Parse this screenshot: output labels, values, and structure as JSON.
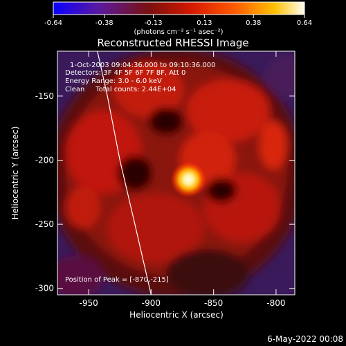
{
  "chart_data": {
    "type": "heatmap",
    "title": "Reconstructed RHESSI Image",
    "xlabel": "Heliocentric X (arcsec)",
    "ylabel": "Heliocentric Y (arcsec)",
    "xlim": [
      -975,
      -785
    ],
    "ylim": [
      -305,
      -115
    ],
    "x_ticks": [
      {
        "value": -950,
        "label": "-950"
      },
      {
        "value": -900,
        "label": "-900"
      },
      {
        "value": -850,
        "label": "-850"
      },
      {
        "value": -800,
        "label": "-800"
      }
    ],
    "y_ticks": [
      {
        "value": -150,
        "label": "-150"
      },
      {
        "value": -200,
        "label": "-200"
      },
      {
        "value": -250,
        "label": "-250"
      },
      {
        "value": -300,
        "label": "-300"
      }
    ],
    "colorbar": {
      "range": [
        -0.64,
        0.64
      ],
      "tick_values": [
        -0.64,
        -0.38,
        -0.13,
        0.13,
        0.38,
        0.64
      ],
      "tick_labels": [
        "-0.64",
        "-0.38",
        "-0.13",
        "0.13",
        "0.38",
        "0.64"
      ],
      "units": "(photons cm⁻² s⁻¹ asec⁻²)"
    },
    "peak": {
      "x": -870,
      "y": -215
    },
    "annotations": {
      "time": "1-Oct-2003 09:04:36.000 to 09:10:36.000",
      "detectors": "Detectors: 3F 4F 5F 6F 7F 8F, Att 0",
      "energy": "Energy Range: 3.0 - 6.0 keV",
      "method": "Clean     Total counts: 2.44E+04",
      "peak_label": "Position of Peak = [-870,-215]"
    },
    "limb": [
      {
        "x": -943,
        "y": -115
      },
      {
        "x": -935,
        "y": -150
      },
      {
        "x": -925,
        "y": -200
      },
      {
        "x": -913,
        "y": -250
      },
      {
        "x": -900,
        "y": -305
      }
    ],
    "grid": false
  },
  "footer": {
    "date": "6-May-2022 00:08"
  }
}
